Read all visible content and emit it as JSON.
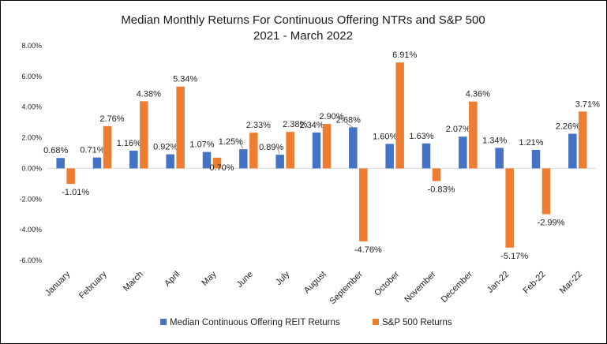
{
  "chart_data": {
    "type": "bar",
    "title": [
      "Median Monthly Returns For Continuous Offering NTRs and S&P 500",
      "2021 - March 2022"
    ],
    "categories": [
      "January",
      "February",
      "March",
      "April",
      "May",
      "June",
      "July",
      "August",
      "September",
      "October",
      "November",
      "December",
      "Jan-22",
      "Feb-22",
      "Mar-22"
    ],
    "series": [
      {
        "name": "Median Continuous Offering REIT Returns",
        "color": "#4472C4",
        "values": [
          0.68,
          0.71,
          1.16,
          0.92,
          1.07,
          1.25,
          0.89,
          2.34,
          2.68,
          1.6,
          1.63,
          2.07,
          1.34,
          1.21,
          2.26
        ],
        "labels": [
          "0.68%",
          "0.71%",
          "1.16%",
          "0.92%",
          "1.07%",
          "1.25%",
          "0.89%",
          "2.34%",
          "2.68%",
          "1.60%",
          "1.63%",
          "2.07%",
          "1.34%",
          "1.21%",
          "2.26%"
        ]
      },
      {
        "name": "S&P 500 Returns",
        "color": "#ED7D31",
        "values": [
          -1.01,
          2.76,
          4.38,
          5.34,
          0.7,
          2.33,
          2.38,
          2.9,
          -4.76,
          6.91,
          -0.83,
          4.36,
          -5.17,
          -2.99,
          3.71
        ],
        "labels": [
          "-1.01%",
          "2.76%",
          "4.38%",
          "5.34%",
          "0.70%",
          "2.33%",
          "2.38%",
          "2.90%",
          "-4.76%",
          "6.91%",
          "-0.83%",
          "4.36%",
          "-5.17%",
          "-2.99%",
          "3.71%"
        ]
      }
    ],
    "y_ticks": [
      "8.00%",
      "6.00%",
      "4.00%",
      "2.00%",
      "0.00%",
      "-2.00%",
      "-4.00%",
      "-6.00%"
    ],
    "ylim": [
      -6,
      8
    ],
    "grid": false,
    "legend_position": "bottom"
  }
}
